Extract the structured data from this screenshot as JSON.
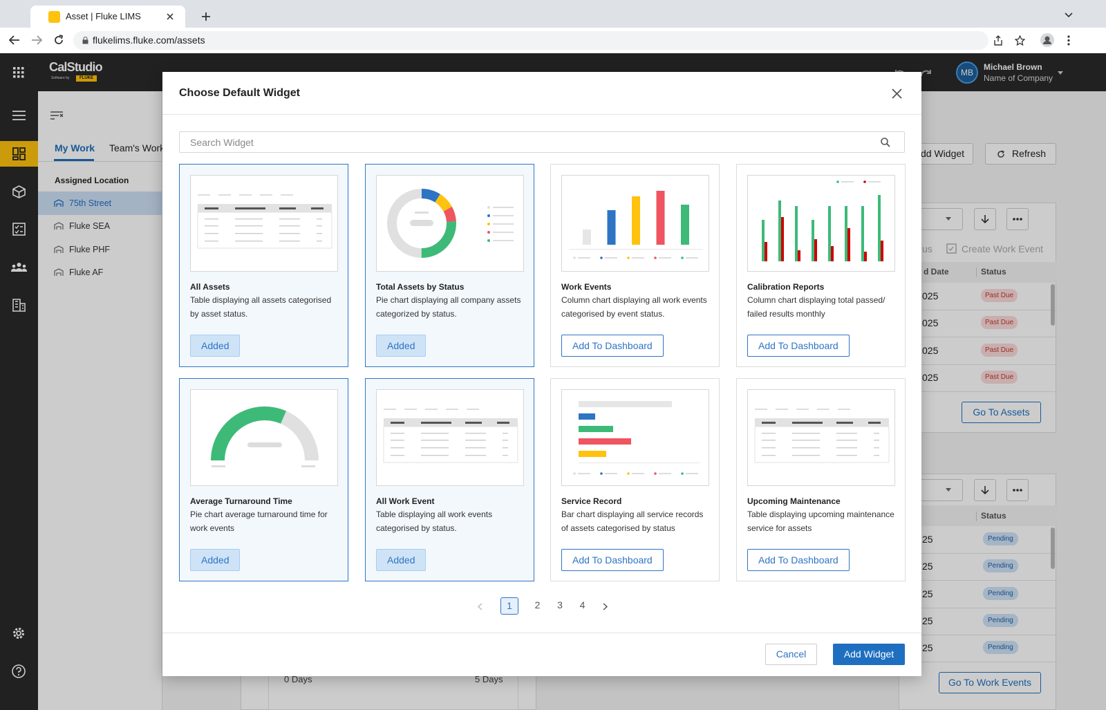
{
  "browser": {
    "tab_title": "Asset | Fluke LIMS",
    "url": "flukelims.fluke.com/assets"
  },
  "header": {
    "logo": "CalStudio",
    "logo_sub": "Software by",
    "logo_brand": "FLUKE",
    "user_initials": "MB",
    "user_name": "Michael Brown",
    "company": "Name of Company"
  },
  "background": {
    "tabs": [
      "My Work",
      "Team's Work"
    ],
    "location_heading": "Assigned Location",
    "locations": [
      "75th Street",
      "Fluke SEA",
      "Fluke PHF",
      "Fluke AF"
    ],
    "add_widget": "dd Widget",
    "refresh": "Refresh",
    "status_fragment": "us",
    "create_work_event": "Create Work Event",
    "assets_table": {
      "columns": [
        "d Date",
        "Status"
      ],
      "rows": [
        [
          "025",
          "Past Due"
        ],
        [
          "025",
          "Past Due"
        ],
        [
          "025",
          "Past Due"
        ],
        [
          "025",
          "Past Due"
        ]
      ]
    },
    "go_to_assets": "Go To Assets",
    "events_table": {
      "columns": [
        "Status"
      ],
      "rows": [
        [
          "25",
          "Pending"
        ],
        [
          "25",
          "Pending"
        ],
        [
          "25",
          "Pending"
        ],
        [
          "25",
          "Pending"
        ],
        [
          "25",
          "Pending"
        ]
      ]
    },
    "go_to_work_events": "Go To Work Events",
    "turnaround_labels": [
      "0 Days",
      "5 Days"
    ]
  },
  "modal": {
    "title": "Choose Default Widget",
    "search_placeholder": "Search Widget",
    "widgets": [
      {
        "name": "All Assets",
        "description": "Table displaying all assets categorised by asset status.",
        "button": "Added",
        "added": true,
        "preview": "table"
      },
      {
        "name": "Total Assets by Status",
        "description": "Pie chart displaying all company assets categorized by status.",
        "button": "Added",
        "added": true,
        "preview": "donut"
      },
      {
        "name": "Work Events",
        "description": "Column chart displaying all work events categorised by event status.",
        "button": "Add To Dashboard",
        "added": false,
        "preview": "columns"
      },
      {
        "name": "Calibration Reports",
        "description": "Column chart displaying total passed/ failed results monthly",
        "button": "Add To Dashboard",
        "added": false,
        "preview": "grouped"
      },
      {
        "name": "Average Turnaround Time",
        "description": "Pie chart average turnaround time for work events",
        "button": "Added",
        "added": true,
        "preview": "gauge"
      },
      {
        "name": "All Work Event",
        "description": "Table displaying all work events categorised by status.",
        "button": "Added",
        "added": true,
        "preview": "table"
      },
      {
        "name": "Service Record",
        "description": "Bar chart displaying all service records of assets categorised by status",
        "button": "Add To Dashboard",
        "added": false,
        "preview": "hbars"
      },
      {
        "name": "Upcoming Maintenance",
        "description": "Table displaying upcoming maintenance service for assets",
        "button": "Add To Dashboard",
        "added": false,
        "preview": "table"
      }
    ],
    "pagination": [
      {
        "label": "1",
        "selected": true
      },
      {
        "label": "2",
        "selected": false
      },
      {
        "label": "3",
        "selected": false
      },
      {
        "label": "4",
        "selected": false
      }
    ],
    "cancel": "Cancel",
    "submit": "Add Widget"
  }
}
